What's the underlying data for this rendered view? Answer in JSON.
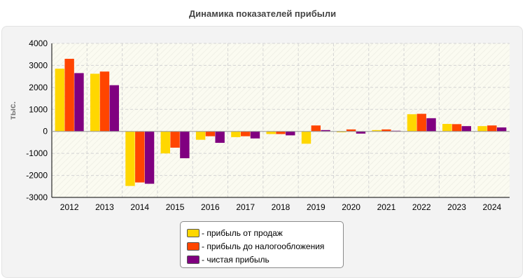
{
  "chart_data": {
    "type": "bar",
    "title": "Динамика показателей прибыли",
    "ylabel": "тыс.",
    "xlabel": "",
    "ylim": [
      -3000,
      4000
    ],
    "yticks": [
      -3000,
      -2000,
      -1000,
      0,
      1000,
      2000,
      3000,
      4000
    ],
    "grid": true,
    "legend_position": "bottom",
    "categories": [
      "2012",
      "2013",
      "2014",
      "2015",
      "2016",
      "2017",
      "2018",
      "2019",
      "2020",
      "2021",
      "2022",
      "2023",
      "2024"
    ],
    "series": [
      {
        "name": "- прибыль от продаж",
        "color": "#ffd700",
        "values": [
          2850,
          2620,
          -2480,
          -1000,
          -380,
          -260,
          -120,
          -560,
          -40,
          60,
          780,
          340,
          240
        ]
      },
      {
        "name": "- прибыль до налогообложения",
        "color": "#ff4500",
        "values": [
          3300,
          2720,
          -2320,
          -740,
          -220,
          -220,
          -120,
          270,
          90,
          90,
          800,
          330,
          270
        ]
      },
      {
        "name": "- чистая прибыль",
        "color": "#800080",
        "values": [
          2650,
          2100,
          -2380,
          -1220,
          -520,
          -320,
          -180,
          60,
          -100,
          30,
          600,
          240,
          180
        ]
      }
    ]
  }
}
